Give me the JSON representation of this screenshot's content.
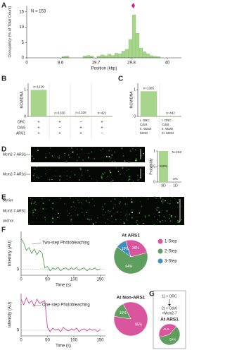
{
  "panel_labels": [
    "A",
    "B",
    "C",
    "D",
    "E",
    "F",
    "G"
  ],
  "histogram": {
    "type": "histogram",
    "n_label": "N = 153",
    "ylabel": "Occupancy (% of Total Count)",
    "xlabel": "Position (kbp)",
    "bins": [
      0,
      1,
      2,
      3,
      4,
      5,
      6,
      7,
      8,
      9,
      10,
      11,
      12,
      13,
      14,
      15,
      16,
      17,
      18,
      19,
      20,
      21,
      22,
      23,
      24,
      25,
      26,
      27,
      28,
      29,
      30,
      31,
      32,
      33,
      34,
      35,
      36,
      37,
      38,
      39,
      40
    ],
    "values": [
      0,
      0,
      0,
      0,
      0,
      0,
      0,
      0,
      0,
      0,
      0.5,
      0.6,
      0,
      0,
      0,
      0,
      0.6,
      0.8,
      0.6,
      0,
      0.6,
      1,
      0.7,
      1.2,
      0.8,
      1.5,
      1.3,
      2.2,
      2.8,
      6,
      14,
      8,
      3.2,
      2,
      1.3,
      0.7,
      0.5,
      0.4,
      0,
      0
    ],
    "color": "#a6d58b",
    "xlim": [
      0,
      44
    ],
    "ylim": [
      0,
      17
    ],
    "xticks": [
      0,
      9.6,
      19.7,
      29.8,
      40
    ],
    "yticks": [
      0,
      5,
      10,
      15
    ],
    "marker_x": 30.3,
    "marker_color": "#e0198a"
  },
  "panel_b": {
    "ylabel": "MCM/DNA",
    "values": [
      1,
      0.02,
      0.03,
      0.02
    ],
    "bar_labels": [
      "n=1229",
      "n=1330",
      "n=1329",
      "n=421"
    ],
    "color": "#a6d58b",
    "ylim": [
      0,
      1.25
    ],
    "yticks": [
      0,
      1
    ],
    "row_labels": [
      "ORC",
      "Cdc6",
      "ARS1"
    ],
    "conditions": [
      [
        "+",
        "+",
        "−",
        "+"
      ],
      [
        "+",
        "−",
        "+",
        "+"
      ],
      [
        "+",
        "+",
        "+",
        "−"
      ]
    ]
  },
  "panel_c": {
    "ylabel": "MCM/DNA",
    "values": [
      0.95,
      0.02
    ],
    "bar_labels": [
      "n=1385",
      "n=442"
    ],
    "color": "#a6d58b",
    "ylim": [
      0,
      1.25
    ],
    "yticks": [
      0,
      1
    ],
    "conditions": [
      [
        "I. ORC",
        "Cdc6",
        "II. Wash",
        "MCM"
      ],
      [
        "I. ORC",
        "Cdc6",
        "II. Wash",
        "III. MCM"
      ]
    ]
  },
  "panel_d": {
    "image_labels": [
      "Mcm2-7-ARS1",
      "Mcm2-7-ARS1"
    ],
    "prob": {
      "ylabel": "Probability",
      "categories": [
        "3D",
        "1D"
      ],
      "values": [
        1,
        0
      ],
      "value_labels": [
        "100%",
        "0%"
      ],
      "n_label": "N=153",
      "color": "#a6d58b",
      "ylim": [
        0,
        1
      ],
      "yticks": [
        0,
        0.5,
        1
      ]
    }
  },
  "panel_e": {
    "labels": [
      "barrier",
      "Mcm2-7-ARS1",
      "anchor"
    ]
  },
  "panel_f": {
    "traces": [
      {
        "annotation": "Two-step Photobleaching",
        "ylabel": "Intensity (AU)",
        "xlabel": "Time (s)",
        "color": "#3d9a3d",
        "xlim": [
          0,
          160
        ],
        "ylim": [
          -0.4,
          2.6
        ],
        "xticks": [
          0,
          50,
          100,
          150
        ],
        "yticks": [
          0
        ],
        "x": [
          0,
          5,
          10,
          15,
          20,
          25,
          30,
          35,
          40,
          45,
          50,
          55,
          60,
          65,
          70,
          75,
          80,
          85,
          90,
          95,
          100,
          105,
          110,
          115,
          120,
          125,
          130,
          135,
          140,
          145,
          150
        ],
        "values": [
          2.1,
          1.8,
          1.3,
          1.5,
          1.1,
          1.4,
          1.0,
          1.3,
          1.1,
          0.1,
          0.2,
          -0.1,
          0.1,
          0,
          0.15,
          -0.1,
          0.05,
          0.1,
          -0.05,
          0.1,
          0,
          0.12,
          -0.08,
          0.05,
          0.1,
          -0.1,
          0.05,
          0,
          0.1,
          -0.05,
          0.05
        ]
      },
      {
        "annotation": "One-step Photobleaching",
        "ylabel": "Intensity (AU)",
        "xlabel": "Time (s)",
        "color": "#d1308f",
        "xlim": [
          0,
          160
        ],
        "ylim": [
          -0.4,
          2.6
        ],
        "xticks": [
          0,
          50,
          100,
          150
        ],
        "yticks": [
          0
        ],
        "x": [
          0,
          5,
          10,
          15,
          20,
          25,
          30,
          35,
          40,
          45,
          50,
          55,
          60,
          65,
          70,
          75,
          80,
          85,
          90,
          95,
          100,
          105,
          110,
          115,
          120,
          125,
          130,
          135,
          140,
          145,
          150
        ],
        "values": [
          2.2,
          1.8,
          2.3,
          1.9,
          2.1,
          1.7,
          2.2,
          1.9,
          2.0,
          2.1,
          0.2,
          -0.1,
          0.15,
          0,
          0.1,
          -0.1,
          0.2,
          0.05,
          -0.05,
          0.1,
          0,
          0.15,
          -0.1,
          0.05,
          0.1,
          -0.05,
          0.1,
          0,
          0.05,
          -0.1,
          0.05
        ]
      }
    ],
    "legend": [
      {
        "name": "1-Step",
        "color": "#d9569e"
      },
      {
        "name": "2-Step",
        "color": "#5e9e5e"
      },
      {
        "name": "3-Step",
        "color": "#3f8fc0"
      }
    ],
    "pies": [
      {
        "title": "At ARS1",
        "values": [
          26,
          64,
          10
        ],
        "value_labels": [
          "26%",
          "64%",
          "10%"
        ]
      },
      {
        "title": "At Non-ARS1",
        "values": [
          85,
          15
        ],
        "value_labels": [
          "85%",
          "15%"
        ]
      }
    ]
  },
  "panel_g": {
    "steps": [
      "1) + ORC",
      "2) + Cdc6",
      "+Mcm2-7"
    ],
    "pie": {
      "title": "At ARS1",
      "values": [
        41,
        59
      ],
      "value_labels": [
        "41%",
        "59%"
      ]
    }
  }
}
